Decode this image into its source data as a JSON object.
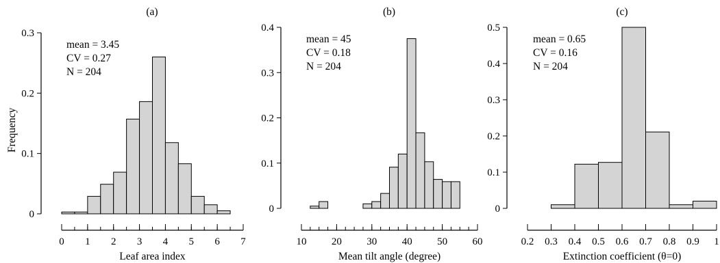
{
  "chart_data": [
    {
      "type": "bar",
      "panel_label": "(a)",
      "xlabel": "Leaf area index",
      "ylabel": "Frequency",
      "xlim": [
        0,
        7
      ],
      "ylim": [
        0,
        0.3
      ],
      "xticks": [
        0,
        1,
        2,
        3,
        4,
        5,
        6,
        7
      ],
      "yticks": [
        0,
        0.1,
        0.2,
        0.3
      ],
      "bin_width": 0.5,
      "bins": [
        {
          "x0": 0.0,
          "value": 0.003
        },
        {
          "x0": 0.5,
          "value": 0.003
        },
        {
          "x0": 1.0,
          "value": 0.029
        },
        {
          "x0": 1.5,
          "value": 0.049
        },
        {
          "x0": 2.0,
          "value": 0.069
        },
        {
          "x0": 2.5,
          "value": 0.157
        },
        {
          "x0": 3.0,
          "value": 0.186
        },
        {
          "x0": 3.5,
          "value": 0.26
        },
        {
          "x0": 4.0,
          "value": 0.118
        },
        {
          "x0": 4.5,
          "value": 0.083
        },
        {
          "x0": 5.0,
          "value": 0.029
        },
        {
          "x0": 5.5,
          "value": 0.015
        },
        {
          "x0": 6.0,
          "value": 0.005
        }
      ],
      "annotations": [
        "mean = 3.45",
        "CV = 0.27",
        "N = 204"
      ],
      "grid": false
    },
    {
      "type": "bar",
      "panel_label": "(b)",
      "xlabel": "Mean tilt angle (degree)",
      "ylabel": "",
      "xlim": [
        10,
        60
      ],
      "ylim": [
        0,
        0.4
      ],
      "xticks": [
        10,
        20,
        30,
        40,
        50,
        60
      ],
      "yticks": [
        0,
        0.1,
        0.2,
        0.3,
        0.4
      ],
      "bin_width": 2.5,
      "bins": [
        {
          "x0": 12.5,
          "value": 0.005
        },
        {
          "x0": 15.0,
          "value": 0.015
        },
        {
          "x0": 27.5,
          "value": 0.01
        },
        {
          "x0": 30.0,
          "value": 0.015
        },
        {
          "x0": 32.5,
          "value": 0.033
        },
        {
          "x0": 35.0,
          "value": 0.091
        },
        {
          "x0": 37.5,
          "value": 0.12
        },
        {
          "x0": 40.0,
          "value": 0.375
        },
        {
          "x0": 42.5,
          "value": 0.167
        },
        {
          "x0": 45.0,
          "value": 0.103
        },
        {
          "x0": 47.5,
          "value": 0.064
        },
        {
          "x0": 50.0,
          "value": 0.059
        },
        {
          "x0": 52.5,
          "value": 0.059
        }
      ],
      "annotations": [
        "mean = 45",
        "CV = 0.18",
        "N = 204"
      ],
      "grid": false
    },
    {
      "type": "bar",
      "panel_label": "(c)",
      "xlabel": "Extinction coefficient (θ=0)",
      "ylabel": "",
      "xlim": [
        0.2,
        1.0
      ],
      "ylim": [
        0,
        0.5
      ],
      "xticks": [
        0.2,
        0.3,
        0.4,
        0.5,
        0.6,
        0.7,
        0.8,
        0.9,
        1
      ],
      "yticks": [
        0,
        0.1,
        0.2,
        0.3,
        0.4,
        0.5
      ],
      "bin_width": 0.1,
      "bins": [
        {
          "x0": 0.3,
          "value": 0.01
        },
        {
          "x0": 0.4,
          "value": 0.122
        },
        {
          "x0": 0.5,
          "value": 0.127
        },
        {
          "x0": 0.6,
          "value": 0.5
        },
        {
          "x0": 0.7,
          "value": 0.211
        },
        {
          "x0": 0.8,
          "value": 0.01
        },
        {
          "x0": 0.9,
          "value": 0.02
        }
      ],
      "annotations": [
        "mean = 0.65",
        "CV = 0.16",
        "N = 204"
      ],
      "grid": false
    }
  ]
}
